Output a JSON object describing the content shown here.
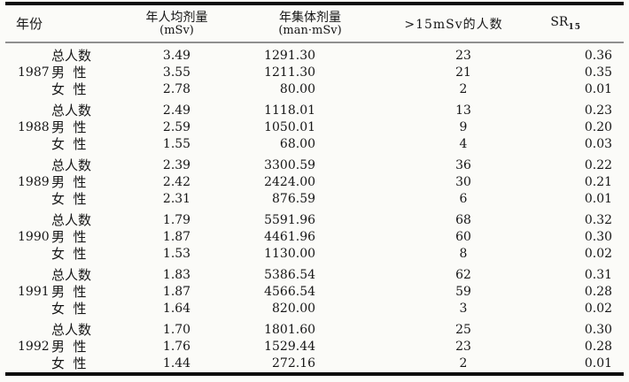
{
  "table": {
    "headers": {
      "year": "年份",
      "per_capita_line1": "年人均剂量",
      "per_capita_unit": "(mSv)",
      "collective_line1": "年集体剂量",
      "collective_unit": "(man·mSv)",
      "over15": ">15mSv的人数",
      "sr_base": "SR",
      "sr_sub": "15"
    },
    "groups": [
      {
        "year": "1987",
        "rows": [
          {
            "label": "总人数",
            "per_capita": "3.49",
            "collective": "1291.30",
            "over15": "23",
            "sr": "0.36"
          },
          {
            "label": "男  性",
            "per_capita": "3.55",
            "collective": "1211.30",
            "over15": "21",
            "sr": "0.35"
          },
          {
            "label": "女  性",
            "per_capita": "2.78",
            "collective": "80.00",
            "over15": "2",
            "sr": "0.01"
          }
        ]
      },
      {
        "year": "1988",
        "rows": [
          {
            "label": "总人数",
            "per_capita": "2.49",
            "collective": "1118.01",
            "over15": "13",
            "sr": "0.23"
          },
          {
            "label": "男  性",
            "per_capita": "2.59",
            "collective": "1050.01",
            "over15": "9",
            "sr": "0.20"
          },
          {
            "label": "女  性",
            "per_capita": "1.55",
            "collective": "68.00",
            "over15": "4",
            "sr": "0.03"
          }
        ]
      },
      {
        "year": "1989",
        "rows": [
          {
            "label": "总人数",
            "per_capita": "2.39",
            "collective": "3300.59",
            "over15": "36",
            "sr": "0.22"
          },
          {
            "label": "男  性",
            "per_capita": "2.42",
            "collective": "2424.00",
            "over15": "30",
            "sr": "0.21"
          },
          {
            "label": "女  性",
            "per_capita": "2.31",
            "collective": "876.59",
            "over15": "6",
            "sr": "0.01"
          }
        ]
      },
      {
        "year": "1990",
        "rows": [
          {
            "label": "总人数",
            "per_capita": "1.79",
            "collective": "5591.96",
            "over15": "68",
            "sr": "0.32"
          },
          {
            "label": "男  性",
            "per_capita": "1.87",
            "collective": "4461.96",
            "over15": "60",
            "sr": "0.30"
          },
          {
            "label": "女  性",
            "per_capita": "1.53",
            "collective": "1130.00",
            "over15": "8",
            "sr": "0.02"
          }
        ]
      },
      {
        "year": "1991",
        "rows": [
          {
            "label": "总人数",
            "per_capita": "1.83",
            "collective": "5386.54",
            "over15": "62",
            "sr": "0.31"
          },
          {
            "label": "男  性",
            "per_capita": "1.87",
            "collective": "4566.54",
            "over15": "59",
            "sr": "0.28"
          },
          {
            "label": "女  性",
            "per_capita": "1.64",
            "collective": "820.00",
            "over15": "3",
            "sr": "0.02"
          }
        ]
      },
      {
        "year": "1992",
        "rows": [
          {
            "label": "总人数",
            "per_capita": "1.70",
            "collective": "1801.60",
            "over15": "25",
            "sr": "0.30"
          },
          {
            "label": "男  性",
            "per_capita": "1.76",
            "collective": "1529.44",
            "over15": "23",
            "sr": "0.28"
          },
          {
            "label": "女  性",
            "per_capita": "1.44",
            "collective": "272.16",
            "over15": "2",
            "sr": "0.01"
          }
        ]
      }
    ]
  }
}
